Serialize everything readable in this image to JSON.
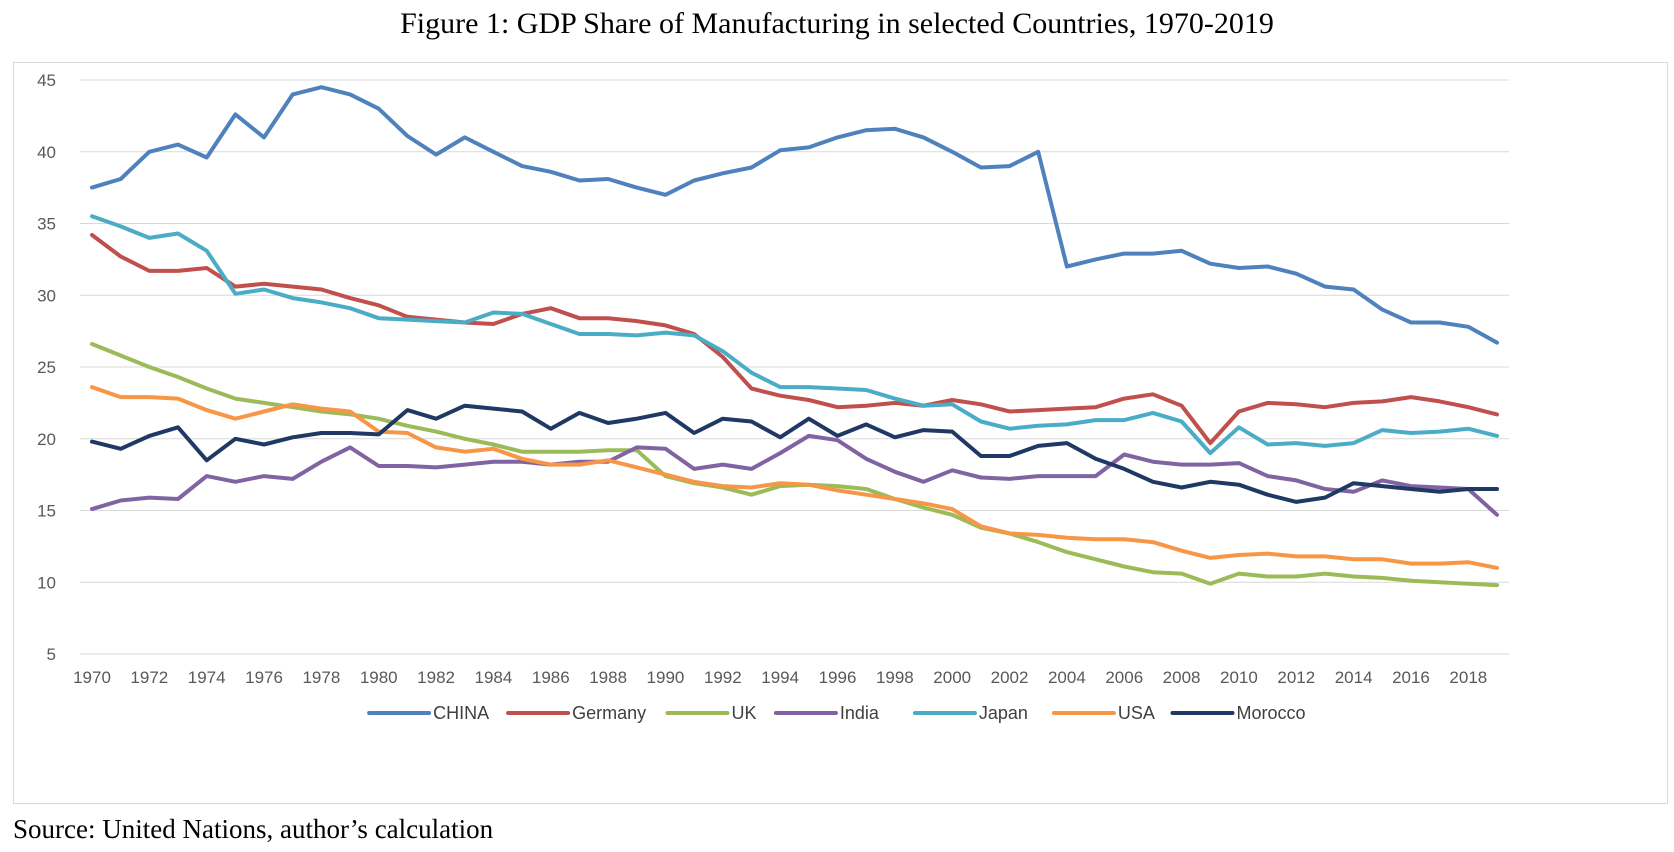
{
  "figure": {
    "title": "Figure 1: GDP Share of Manufacturing in selected Countries, 1970-2019",
    "source": "Source: United Nations, author’s calculation"
  },
  "chart_data": {
    "type": "line",
    "title": "",
    "xlabel": "",
    "ylabel": "",
    "ylim": [
      5,
      45
    ],
    "yticks": [
      5,
      10,
      15,
      20,
      25,
      30,
      35,
      40,
      45
    ],
    "grid": "horizontal",
    "legend_position": "bottom",
    "x": [
      1970,
      1971,
      1972,
      1973,
      1974,
      1975,
      1976,
      1977,
      1978,
      1979,
      1980,
      1981,
      1982,
      1983,
      1984,
      1985,
      1986,
      1987,
      1988,
      1989,
      1990,
      1991,
      1992,
      1993,
      1994,
      1995,
      1996,
      1997,
      1998,
      1999,
      2000,
      2001,
      2002,
      2003,
      2004,
      2005,
      2006,
      2007,
      2008,
      2009,
      2010,
      2011,
      2012,
      2013,
      2014,
      2015,
      2016,
      2017,
      2018,
      2019
    ],
    "xtick_labels": [
      "1970",
      "1972",
      "1974",
      "1976",
      "1978",
      "1980",
      "1982",
      "1984",
      "1986",
      "1988",
      "1990",
      "1992",
      "1994",
      "1996",
      "1998",
      "2000",
      "2002",
      "2004",
      "2006",
      "2008",
      "2010",
      "2012",
      "2014",
      "2016",
      "2018"
    ],
    "series": [
      {
        "name": "CHINA",
        "color": "#4f81bd",
        "values": [
          37.5,
          38.1,
          40.0,
          40.5,
          39.6,
          42.6,
          41.0,
          44.0,
          44.5,
          44.0,
          43.0,
          41.1,
          39.8,
          41.0,
          40.0,
          39.0,
          38.6,
          38.0,
          38.1,
          37.5,
          37.0,
          38.0,
          38.5,
          38.9,
          40.1,
          40.3,
          41.0,
          41.5,
          41.6,
          41.0,
          40.0,
          38.9,
          39.0,
          40.0,
          32.0,
          32.5,
          32.9,
          32.9,
          33.1,
          32.2,
          31.9,
          32.0,
          31.5,
          30.6,
          30.4,
          29.0,
          28.1,
          28.1,
          27.8,
          26.7
        ]
      },
      {
        "name": "Germany",
        "color": "#c0504d",
        "values": [
          34.2,
          32.7,
          31.7,
          31.7,
          31.9,
          30.6,
          30.8,
          30.6,
          30.4,
          29.8,
          29.3,
          28.5,
          28.3,
          28.1,
          28.0,
          28.7,
          29.1,
          28.4,
          28.4,
          28.2,
          27.9,
          27.3,
          25.7,
          23.5,
          23.0,
          22.7,
          22.2,
          22.3,
          22.5,
          22.3,
          22.7,
          22.4,
          21.9,
          22.0,
          22.1,
          22.2,
          22.8,
          23.1,
          22.3,
          19.7,
          21.9,
          22.5,
          22.4,
          22.2,
          22.5,
          22.6,
          22.9,
          22.6,
          22.2,
          21.7
        ]
      },
      {
        "name": "UK",
        "color": "#9bbb59",
        "values": [
          26.6,
          25.8,
          25.0,
          24.3,
          23.5,
          22.8,
          22.5,
          22.2,
          21.9,
          21.7,
          21.4,
          20.9,
          20.5,
          20.0,
          19.6,
          19.1,
          19.1,
          19.1,
          19.2,
          19.2,
          17.4,
          16.9,
          16.6,
          16.1,
          16.7,
          16.8,
          16.7,
          16.5,
          15.8,
          15.2,
          14.7,
          13.8,
          13.4,
          12.8,
          12.1,
          11.6,
          11.1,
          10.7,
          10.6,
          9.9,
          10.6,
          10.4,
          10.4,
          10.6,
          10.4,
          10.3,
          10.1,
          10.0,
          9.9,
          9.8
        ]
      },
      {
        "name": "India",
        "color": "#8064a2",
        "values": [
          15.1,
          15.7,
          15.9,
          15.8,
          17.4,
          17.0,
          17.4,
          17.2,
          18.4,
          19.4,
          18.1,
          18.1,
          18.0,
          18.2,
          18.4,
          18.4,
          18.2,
          18.4,
          18.4,
          19.4,
          19.3,
          17.9,
          18.2,
          17.9,
          19.0,
          20.2,
          19.9,
          18.6,
          17.7,
          17.0,
          17.8,
          17.3,
          17.2,
          17.4,
          17.4,
          17.4,
          18.9,
          18.4,
          18.2,
          18.2,
          18.3,
          17.4,
          17.1,
          16.5,
          16.3,
          17.1,
          16.7,
          16.6,
          16.5,
          14.7
        ]
      },
      {
        "name": "Japan",
        "color": "#4bacc6",
        "values": [
          35.5,
          34.8,
          34.0,
          34.3,
          33.1,
          30.1,
          30.4,
          29.8,
          29.5,
          29.1,
          28.4,
          28.3,
          28.2,
          28.1,
          28.8,
          28.7,
          28.0,
          27.3,
          27.3,
          27.2,
          27.4,
          27.2,
          26.1,
          24.6,
          23.6,
          23.6,
          23.5,
          23.4,
          22.8,
          22.3,
          22.4,
          21.2,
          20.7,
          20.9,
          21.0,
          21.3,
          21.3,
          21.8,
          21.2,
          19.0,
          20.8,
          19.6,
          19.7,
          19.5,
          19.7,
          20.6,
          20.4,
          20.5,
          20.7,
          20.2
        ]
      },
      {
        "name": "USA",
        "color": "#f79646",
        "values": [
          23.6,
          22.9,
          22.9,
          22.8,
          22.0,
          21.4,
          21.9,
          22.4,
          22.1,
          21.9,
          20.5,
          20.4,
          19.4,
          19.1,
          19.3,
          18.6,
          18.2,
          18.2,
          18.5,
          18.0,
          17.5,
          17.0,
          16.7,
          16.6,
          16.9,
          16.8,
          16.4,
          16.1,
          15.8,
          15.5,
          15.1,
          13.9,
          13.4,
          13.3,
          13.1,
          13.0,
          13.0,
          12.8,
          12.2,
          11.7,
          11.9,
          12.0,
          11.8,
          11.8,
          11.6,
          11.6,
          11.3,
          11.3,
          11.4,
          11.0
        ]
      },
      {
        "name": "Morocco",
        "color": "#1f3864",
        "values": [
          19.8,
          19.3,
          20.2,
          20.8,
          18.5,
          20.0,
          19.6,
          20.1,
          20.4,
          20.4,
          20.3,
          22.0,
          21.4,
          22.3,
          22.1,
          21.9,
          20.7,
          21.8,
          21.1,
          21.4,
          21.8,
          20.4,
          21.4,
          21.2,
          20.1,
          21.4,
          20.2,
          21.0,
          20.1,
          20.6,
          20.5,
          18.8,
          18.8,
          19.5,
          19.7,
          18.6,
          17.9,
          17.0,
          16.6,
          17.0,
          16.8,
          16.1,
          15.6,
          15.9,
          16.9,
          16.7,
          16.5,
          16.3,
          16.5,
          16.5
        ]
      }
    ]
  }
}
